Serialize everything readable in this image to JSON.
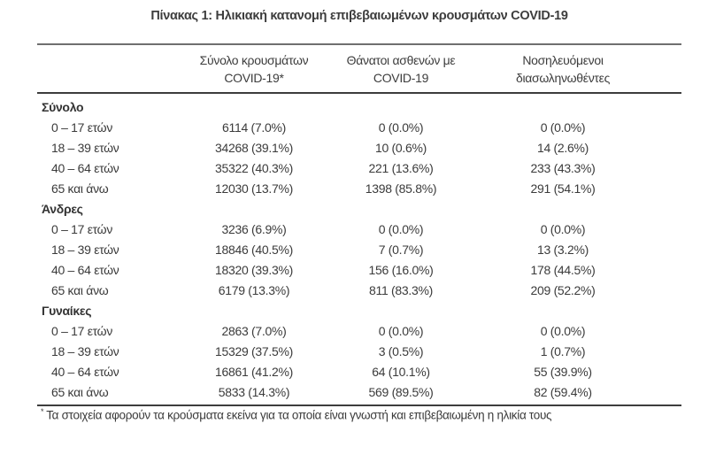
{
  "page": {
    "title": "Πίνακας 1: Ηλικιακή κατανομή επιβεβαιωμένων κρουσμάτων COVID-19",
    "footnote_marker": "*",
    "footnote": "Τα στοιχεία αφορούν τα κρούσματα εκείνα για τα οποία είναι γνωστή και επιβεβαιωμένη η ηλικία τους"
  },
  "colors": {
    "text": "#3b3b3b",
    "rule_top": "#6f6f6f",
    "rule_dark": "#3d3d3d",
    "background": "#ffffff"
  },
  "table": {
    "columns": [
      {
        "line1": "Σύνολο κρουσμάτων",
        "line2": "COVID-19*"
      },
      {
        "line1": "Θάνατοι ασθενών με",
        "line2": "COVID-19"
      },
      {
        "line1": "Νοσηλευόμενοι",
        "line2": "διασωληνωθέντες"
      }
    ],
    "sections": [
      {
        "heading": "Σύνολο",
        "rows": [
          {
            "label": "0 – 17 ετών",
            "cases": "6114 (7.0%)",
            "deaths": "0 (0.0%)",
            "intubated": "0 (0.0%)"
          },
          {
            "label": "18 – 39 ετών",
            "cases": "34268 (39.1%)",
            "deaths": "10 (0.6%)",
            "intubated": "14 (2.6%)"
          },
          {
            "label": "40 – 64 ετών",
            "cases": "35322 (40.3%)",
            "deaths": "221 (13.6%)",
            "intubated": "233 (43.3%)"
          },
          {
            "label": "65 και άνω",
            "cases": "12030 (13.7%)",
            "deaths": "1398 (85.8%)",
            "intubated": "291 (54.1%)"
          }
        ]
      },
      {
        "heading": "Άνδρες",
        "rows": [
          {
            "label": "0 – 17 ετών",
            "cases": "3236 (6.9%)",
            "deaths": "0 (0.0%)",
            "intubated": "0 (0.0%)"
          },
          {
            "label": "18 – 39 ετών",
            "cases": "18846 (40.5%)",
            "deaths": "7 (0.7%)",
            "intubated": "13 (3.2%)"
          },
          {
            "label": "40 – 64 ετών",
            "cases": "18320 (39.3%)",
            "deaths": "156 (16.0%)",
            "intubated": "178 (44.5%)"
          },
          {
            "label": "65 και άνω",
            "cases": "6179 (13.3%)",
            "deaths": "811 (83.3%)",
            "intubated": "209 (52.2%)"
          }
        ]
      },
      {
        "heading": "Γυναίκες",
        "rows": [
          {
            "label": "0 – 17 ετών",
            "cases": "2863 (7.0%)",
            "deaths": "0 (0.0%)",
            "intubated": "0 (0.0%)"
          },
          {
            "label": "18 – 39 ετών",
            "cases": "15329 (37.5%)",
            "deaths": "3 (0.5%)",
            "intubated": "1 (0.7%)"
          },
          {
            "label": "40 – 64 ετών",
            "cases": "16861 (41.2%)",
            "deaths": "64 (10.1%)",
            "intubated": "55 (39.9%)"
          },
          {
            "label": "65 και άνω",
            "cases": "5833 (14.3%)",
            "deaths": "569 (89.5%)",
            "intubated": "82 (59.4%)"
          }
        ]
      }
    ]
  }
}
